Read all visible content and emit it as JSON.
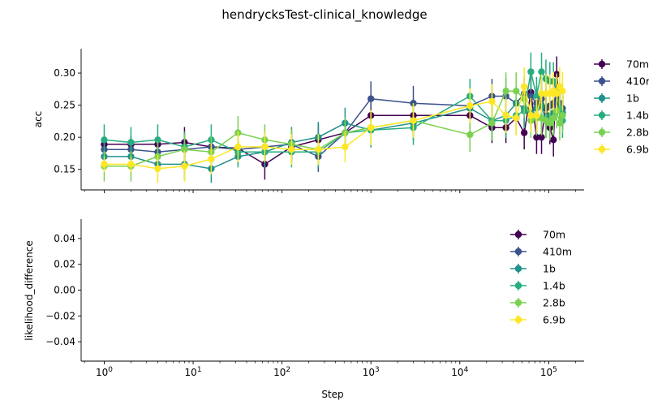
{
  "figure_title": "hendrycksTest-clinical_knowledge",
  "chart_data": [
    {
      "type": "line",
      "xscale": "log",
      "xlim": [
        0.55,
        250000
      ],
      "ylim": [
        0.118,
        0.338
      ],
      "ylabel": "acc",
      "xlabel": "",
      "yticks": [
        0.15,
        0.2,
        0.25,
        0.3
      ],
      "ytick_labels": [
        "0.15",
        "0.20",
        "0.25",
        "0.30"
      ],
      "error_bars": true,
      "grid": false,
      "legend": "right",
      "series": [
        {
          "name": "70m",
          "color": "#440154",
          "points": [
            [
              1,
              0.189
            ],
            [
              2,
              0.189
            ],
            [
              4,
              0.189
            ],
            [
              8,
              0.192
            ],
            [
              16,
              0.185
            ],
            [
              32,
              0.183
            ],
            [
              64,
              0.158
            ],
            [
              128,
              0.185
            ],
            [
              256,
              0.196
            ],
            [
              512,
              0.207
            ],
            [
              1000,
              0.234
            ],
            [
              3000,
              0.234
            ],
            [
              13000,
              0.234
            ],
            [
              23000,
              0.215
            ],
            [
              33000,
              0.215
            ],
            [
              43000,
              0.23
            ],
            [
              53000,
              0.207
            ],
            [
              63000,
              0.27
            ],
            [
              73000,
              0.2
            ],
            [
              83000,
              0.2
            ],
            [
              93000,
              0.245
            ],
            [
              103000,
              0.215
            ],
            [
              113000,
              0.196
            ],
            [
              123000,
              0.298
            ],
            [
              133000,
              0.245
            ],
            [
              143000,
              0.238
            ]
          ],
          "errors": [
            0.012,
            0.012,
            0.012,
            0.024,
            0.012,
            0.012,
            0.024,
            0.024,
            0.024,
            0.024,
            0.024,
            0.024,
            0.024,
            0.024,
            0.024,
            0.026,
            0.026,
            0.03,
            0.026,
            0.026,
            0.03,
            0.026,
            0.026,
            0.028,
            0.026,
            0.026
          ]
        },
        {
          "name": "410m",
          "color": "#3b528b",
          "points": [
            [
              1,
              0.181
            ],
            [
              2,
              0.181
            ],
            [
              4,
              0.177
            ],
            [
              8,
              0.181
            ],
            [
              16,
              0.185
            ],
            [
              32,
              0.181
            ],
            [
              64,
              0.185
            ],
            [
              128,
              0.189
            ],
            [
              256,
              0.17
            ],
            [
              512,
              0.207
            ],
            [
              1000,
              0.26
            ],
            [
              3000,
              0.253
            ],
            [
              13000,
              0.249
            ],
            [
              23000,
              0.264
            ],
            [
              33000,
              0.264
            ],
            [
              43000,
              0.253
            ],
            [
              53000,
              0.268
            ],
            [
              63000,
              0.264
            ],
            [
              73000,
              0.253
            ],
            [
              83000,
              0.26
            ],
            [
              93000,
              0.245
            ],
            [
              103000,
              0.249
            ],
            [
              113000,
              0.253
            ],
            [
              123000,
              0.27
            ],
            [
              133000,
              0.253
            ],
            [
              143000,
              0.245
            ]
          ],
          "errors": [
            0.012,
            0.012,
            0.012,
            0.024,
            0.012,
            0.012,
            0.024,
            0.024,
            0.024,
            0.024,
            0.027,
            0.027,
            0.027,
            0.027,
            0.027,
            0.027,
            0.027,
            0.027,
            0.027,
            0.027,
            0.027,
            0.027,
            0.027,
            0.027,
            0.027,
            0.027
          ]
        },
        {
          "name": "1b",
          "color": "#21918c",
          "points": [
            [
              1,
              0.17
            ],
            [
              2,
              0.17
            ],
            [
              4,
              0.158
            ],
            [
              8,
              0.158
            ],
            [
              16,
              0.151
            ],
            [
              32,
              0.17
            ],
            [
              64,
              0.177
            ],
            [
              128,
              0.192
            ],
            [
              256,
              0.2
            ],
            [
              512,
              0.222
            ],
            [
              1000,
              0.211
            ],
            [
              3000,
              0.222
            ],
            [
              13000,
              0.245
            ],
            [
              23000,
              0.226
            ],
            [
              33000,
              0.234
            ],
            [
              43000,
              0.253
            ],
            [
              53000,
              0.245
            ],
            [
              63000,
              0.238
            ],
            [
              73000,
              0.245
            ],
            [
              83000,
              0.249
            ],
            [
              93000,
              0.226
            ],
            [
              103000,
              0.234
            ],
            [
              113000,
              0.238
            ],
            [
              123000,
              0.241
            ],
            [
              133000,
              0.245
            ],
            [
              143000,
              0.238
            ]
          ],
          "errors": [
            0.012,
            0.012,
            0.012,
            0.024,
            0.022,
            0.012,
            0.024,
            0.024,
            0.024,
            0.024,
            0.027,
            0.027,
            0.027,
            0.027,
            0.027,
            0.027,
            0.027,
            0.027,
            0.027,
            0.027,
            0.027,
            0.027,
            0.027,
            0.027,
            0.027,
            0.027
          ]
        },
        {
          "name": "1.4b",
          "color": "#27ad81",
          "points": [
            [
              1,
              0.196
            ],
            [
              2,
              0.192
            ],
            [
              4,
              0.196
            ],
            [
              8,
              0.185
            ],
            [
              16,
              0.196
            ],
            [
              32,
              0.177
            ],
            [
              64,
              0.177
            ],
            [
              128,
              0.177
            ],
            [
              256,
              0.177
            ],
            [
              512,
              0.207
            ],
            [
              1000,
              0.211
            ],
            [
              3000,
              0.215
            ],
            [
              13000,
              0.264
            ],
            [
              23000,
              0.226
            ],
            [
              33000,
              0.226
            ],
            [
              43000,
              0.234
            ],
            [
              53000,
              0.241
            ],
            [
              63000,
              0.302
            ],
            [
              73000,
              0.264
            ],
            [
              83000,
              0.302
            ],
            [
              93000,
              0.291
            ],
            [
              103000,
              0.287
            ],
            [
              113000,
              0.287
            ],
            [
              123000,
              0.27
            ],
            [
              133000,
              0.245
            ],
            [
              143000,
              0.226
            ]
          ],
          "errors": [
            0.024,
            0.024,
            0.024,
            0.024,
            0.024,
            0.024,
            0.024,
            0.024,
            0.024,
            0.024,
            0.027,
            0.027,
            0.027,
            0.027,
            0.027,
            0.027,
            0.027,
            0.03,
            0.03,
            0.03,
            0.03,
            0.03,
            0.03,
            0.03,
            0.027,
            0.027
          ]
        },
        {
          "name": "2.8b",
          "color": "#7ad151",
          "points": [
            [
              1,
              0.155
            ],
            [
              2,
              0.155
            ],
            [
              4,
              0.17
            ],
            [
              8,
              0.181
            ],
            [
              16,
              0.177
            ],
            [
              32,
              0.207
            ],
            [
              64,
              0.196
            ],
            [
              128,
              0.189
            ],
            [
              256,
              0.181
            ],
            [
              512,
              0.207
            ],
            [
              1000,
              0.215
            ],
            [
              3000,
              0.226
            ],
            [
              13000,
              0.204
            ],
            [
              23000,
              0.222
            ],
            [
              33000,
              0.272
            ],
            [
              43000,
              0.272
            ],
            [
              53000,
              0.26
            ],
            [
              63000,
              0.226
            ],
            [
              73000,
              0.23
            ],
            [
              83000,
              0.23
            ],
            [
              93000,
              0.226
            ],
            [
              103000,
              0.222
            ],
            [
              113000,
              0.23
            ],
            [
              123000,
              0.241
            ],
            [
              133000,
              0.222
            ],
            [
              143000,
              0.234
            ]
          ],
          "errors": [
            0.024,
            0.024,
            0.024,
            0.024,
            0.024,
            0.026,
            0.024,
            0.024,
            0.024,
            0.024,
            0.027,
            0.027,
            0.027,
            0.027,
            0.029,
            0.029,
            0.029,
            0.027,
            0.027,
            0.027,
            0.027,
            0.027,
            0.027,
            0.027,
            0.027,
            0.027
          ]
        },
        {
          "name": "6.9b",
          "color": "#fde725",
          "points": [
            [
              1,
              0.158
            ],
            [
              2,
              0.158
            ],
            [
              4,
              0.151
            ],
            [
              8,
              0.155
            ],
            [
              16,
              0.166
            ],
            [
              32,
              0.185
            ],
            [
              64,
              0.185
            ],
            [
              128,
              0.181
            ],
            [
              256,
              0.181
            ],
            [
              512,
              0.185
            ],
            [
              1000,
              0.215
            ],
            [
              3000,
              0.226
            ],
            [
              13000,
              0.249
            ],
            [
              23000,
              0.256
            ],
            [
              33000,
              0.234
            ],
            [
              43000,
              0.23
            ],
            [
              53000,
              0.279
            ],
            [
              63000,
              0.234
            ],
            [
              73000,
              0.234
            ],
            [
              83000,
              0.268
            ],
            [
              93000,
              0.268
            ],
            [
              103000,
              0.268
            ],
            [
              113000,
              0.272
            ],
            [
              123000,
              0.268
            ],
            [
              133000,
              0.279
            ],
            [
              143000,
              0.272
            ]
          ],
          "errors": [
            0.012,
            0.012,
            0.022,
            0.024,
            0.024,
            0.024,
            0.024,
            0.024,
            0.024,
            0.024,
            0.027,
            0.027,
            0.027,
            0.027,
            0.027,
            0.027,
            0.03,
            0.027,
            0.027,
            0.03,
            0.03,
            0.03,
            0.03,
            0.03,
            0.03,
            0.03
          ]
        }
      ]
    },
    {
      "type": "line",
      "xscale": "log",
      "xlim": [
        0.55,
        250000
      ],
      "ylim": [
        -0.055,
        0.055
      ],
      "ylabel": "likelihood_difference",
      "xlabel": "Step",
      "yticks": [
        0.04,
        0.02,
        0.0,
        -0.02,
        -0.04
      ],
      "ytick_labels": [
        "0.04",
        "0.02",
        "0.00",
        "−0.02",
        "−0.04"
      ],
      "xticks": [
        1,
        10,
        100,
        1000,
        10000,
        100000
      ],
      "xtick_labels": [
        "10",
        "10",
        "10",
        "10",
        "10",
        "10"
      ],
      "xtick_exponents": [
        "0",
        "1",
        "2",
        "3",
        "4",
        "5"
      ],
      "grid": false,
      "legend": "upper-right",
      "series": [
        {
          "name": "70m",
          "color": "#440154",
          "points": []
        },
        {
          "name": "410m",
          "color": "#3b528b",
          "points": []
        },
        {
          "name": "1b",
          "color": "#21918c",
          "points": []
        },
        {
          "name": "1.4b",
          "color": "#27ad81",
          "points": []
        },
        {
          "name": "2.8b",
          "color": "#7ad151",
          "points": []
        },
        {
          "name": "6.9b",
          "color": "#fde725",
          "points": []
        }
      ]
    }
  ]
}
